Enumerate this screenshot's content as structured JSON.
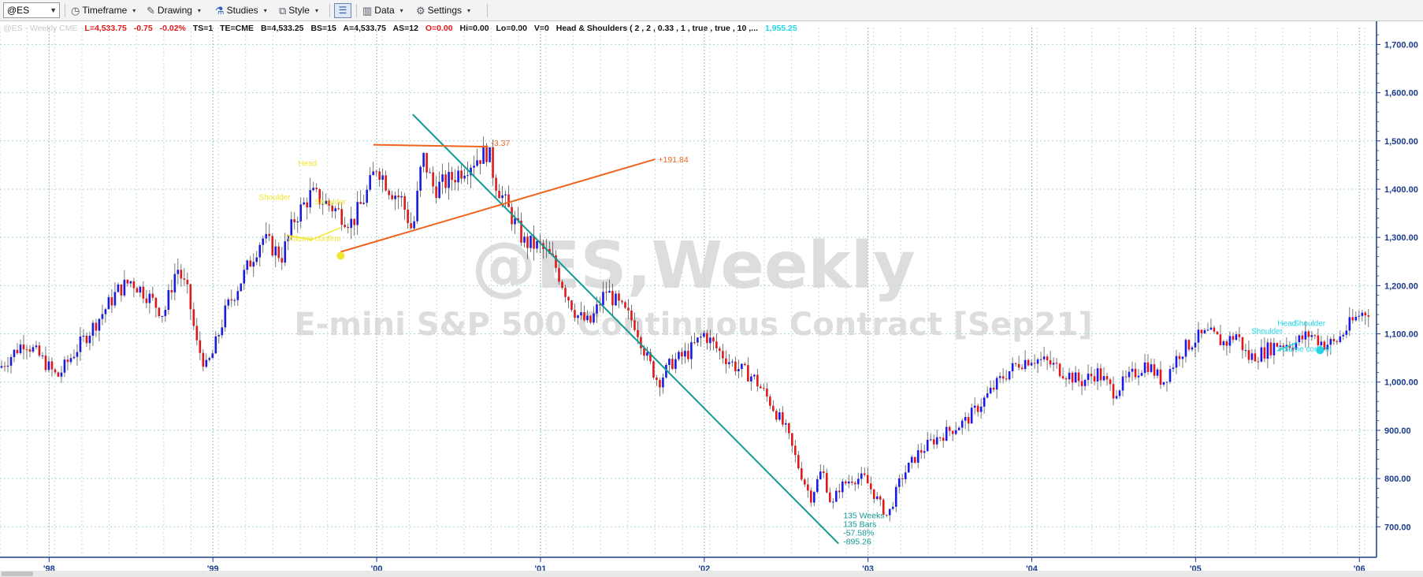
{
  "toolbar": {
    "symbol": "@ES",
    "timeframe_label": "Timeframe",
    "drawing_label": "Drawing",
    "studies_label": "Studies",
    "style_label": "Style",
    "data_label": "Data",
    "settings_label": "Settings"
  },
  "info_bar": {
    "instrument": "@ES - Weekly  CME",
    "last": "L=4,533.75",
    "change": "-0.75",
    "change_pct": "-0.02%",
    "ts": "TS=1",
    "te": "TE=CME",
    "bid": "B=4,533.25",
    "bid_size": "BS=15",
    "ask": "A=4,533.75",
    "ask_size": "AS=12",
    "open": "O=0.00",
    "high": "Hi=0.00",
    "low": "Lo=0.00",
    "volume": "V=0",
    "study": "Head & Shoulders ( 2 , 2 , 0.33 , 1 , true , true , 10 ,...",
    "study_value": "1,955.25"
  },
  "watermark": {
    "symbol": "@ES,Weekly",
    "contract": "E-mini S&P 500 Continuous Contract [Sep21]"
  },
  "colors": {
    "up_bar": "#1a1ae6",
    "down_bar": "#e01818",
    "axis_text": "#1a3a8a",
    "grid": "#a8d4d4",
    "trend_down": "#139a93",
    "trend_orange": "#f0641e",
    "pattern_yellow": "#f2e630",
    "pattern_cyan": "#22d6e8"
  },
  "chart_data": {
    "type": "candlestick",
    "title": "@ES,Weekly",
    "subtitle": "E-mini S&P 500 Continuous Contract [Sep21]",
    "xlabel": "",
    "ylabel": "",
    "x_ticks": [
      "'98",
      "'99",
      "'00",
      "'01",
      "'02",
      "'03",
      "'04",
      "'05",
      "'06"
    ],
    "x_tick_years": [
      1998,
      1999,
      2000,
      2001,
      2002,
      2003,
      2004,
      2005,
      2006
    ],
    "y_ticks": [
      "700.00",
      "800.00",
      "900.00",
      "1,000.00",
      "1,100.00",
      "1,200.00",
      "1,300.00",
      "1,400.00",
      "1,500.00",
      "1,600.00",
      "1,700.00"
    ],
    "y_tick_values": [
      700,
      800,
      900,
      1000,
      1100,
      1200,
      1300,
      1400,
      1500,
      1600,
      1700
    ],
    "xlim": [
      1997.7,
      2006.1
    ],
    "ylim": [
      640,
      1735
    ],
    "grid": true,
    "price_path": [
      [
        1997.7,
        1030
      ],
      [
        1997.85,
        1085
      ],
      [
        1997.95,
        1050
      ],
      [
        1998.05,
        1010
      ],
      [
        1998.15,
        1060
      ],
      [
        1998.3,
        1130
      ],
      [
        1998.42,
        1190
      ],
      [
        1998.5,
        1210
      ],
      [
        1998.6,
        1180
      ],
      [
        1998.7,
        1140
      ],
      [
        1998.78,
        1240
      ],
      [
        1998.85,
        1180
      ],
      [
        1998.9,
        1080
      ],
      [
        1998.96,
        1030
      ],
      [
        1999.0,
        1060
      ],
      [
        1999.08,
        1150
      ],
      [
        1999.2,
        1230
      ],
      [
        1999.3,
        1300
      ],
      [
        1999.42,
        1260
      ],
      [
        1999.5,
        1340
      ],
      [
        1999.6,
        1390
      ],
      [
        1999.7,
        1370
      ],
      [
        1999.85,
        1330
      ],
      [
        1999.95,
        1400
      ],
      [
        2000.0,
        1450
      ],
      [
        2000.08,
        1400
      ],
      [
        2000.15,
        1380
      ],
      [
        2000.22,
        1310
      ],
      [
        2000.28,
        1470
      ],
      [
        2000.35,
        1400
      ],
      [
        2000.45,
        1420
      ],
      [
        2000.55,
        1450
      ],
      [
        2000.68,
        1480
      ],
      [
        2000.72,
        1420
      ],
      [
        2000.8,
        1360
      ],
      [
        2000.9,
        1290
      ],
      [
        2001.0,
        1280
      ],
      [
        2001.08,
        1250
      ],
      [
        2001.15,
        1190
      ],
      [
        2001.22,
        1140
      ],
      [
        2001.3,
        1120
      ],
      [
        2001.4,
        1190
      ],
      [
        2001.5,
        1150
      ],
      [
        2001.58,
        1120
      ],
      [
        2001.65,
        1050
      ],
      [
        2001.72,
        1000
      ],
      [
        2001.8,
        1040
      ],
      [
        2001.9,
        1060
      ],
      [
        2002.0,
        1100
      ],
      [
        2002.1,
        1060
      ],
      [
        2002.2,
        1030
      ],
      [
        2002.3,
        1010
      ],
      [
        2002.4,
        960
      ],
      [
        2002.5,
        900
      ],
      [
        2002.58,
        820
      ],
      [
        2002.65,
        760
      ],
      [
        2002.72,
        820
      ],
      [
        2002.78,
        740
      ],
      [
        2002.82,
        780
      ],
      [
        2002.9,
        800
      ],
      [
        2002.98,
        800
      ],
      [
        2003.05,
        760
      ],
      [
        2003.12,
        720
      ],
      [
        2003.2,
        800
      ],
      [
        2003.3,
        850
      ],
      [
        2003.4,
        880
      ],
      [
        2003.5,
        900
      ],
      [
        2003.6,
        920
      ],
      [
        2003.7,
        960
      ],
      [
        2003.82,
        1010
      ],
      [
        2003.92,
        1040
      ],
      [
        2004.0,
        1050
      ],
      [
        2004.1,
        1040
      ],
      [
        2004.2,
        1020
      ],
      [
        2004.3,
        1000
      ],
      [
        2004.4,
        1020
      ],
      [
        2004.5,
        980
      ],
      [
        2004.6,
        1010
      ],
      [
        2004.7,
        1040
      ],
      [
        2004.8,
        1000
      ],
      [
        2004.9,
        1060
      ],
      [
        2005.0,
        1090
      ],
      [
        2005.08,
        1100
      ],
      [
        2005.18,
        1080
      ],
      [
        2005.25,
        1100
      ],
      [
        2005.32,
        1050
      ],
      [
        2005.4,
        1060
      ],
      [
        2005.5,
        1080
      ],
      [
        2005.6,
        1080
      ],
      [
        2005.7,
        1100
      ],
      [
        2005.78,
        1080
      ],
      [
        2005.85,
        1080
      ],
      [
        2005.92,
        1110
      ],
      [
        2006.0,
        1140
      ],
      [
        2006.06,
        1150
      ]
    ],
    "annotations": {
      "trend_down": {
        "from": [
          2000.22,
          1555
        ],
        "to": [
          2002.82,
          665
        ],
        "labels": [
          "135 Weeks",
          "135 Bars",
          "-57.58%",
          "-895.26"
        ]
      },
      "hs_neckline": {
        "from": [
          1999.78,
          1270
        ],
        "to": [
          2001.7,
          1462
        ],
        "label": "+191.84"
      },
      "hs_top": {
        "from": [
          1999.98,
          1492
        ],
        "to": [
          2000.68,
          1488
        ],
        "label": "-3.37"
      },
      "pattern_labels_1999": [
        "Shoulder",
        "Head",
        "Shoulder",
        "Volume confirm"
      ],
      "pattern_labels_2005": [
        "Shoulder",
        "Head",
        "Shoulder",
        "Volume confirm"
      ]
    }
  }
}
